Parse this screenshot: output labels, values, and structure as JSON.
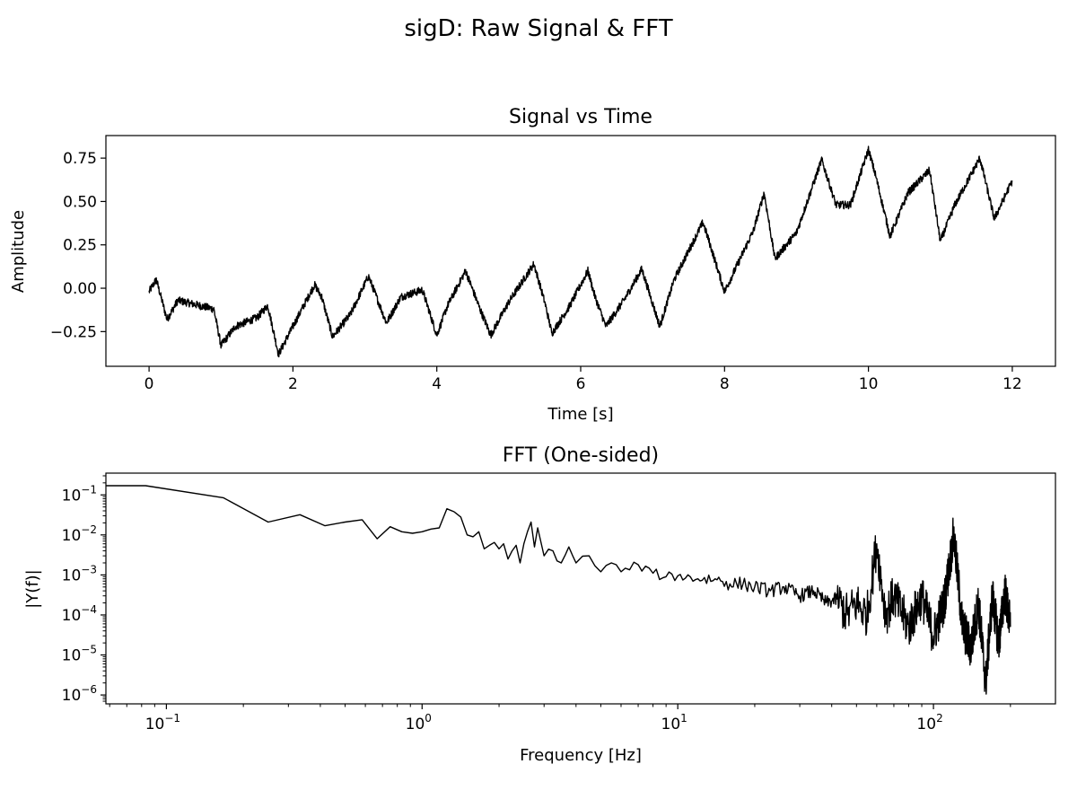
{
  "figure": {
    "title": "sigD: Raw Signal & FFT"
  },
  "chart_data": [
    {
      "type": "line",
      "title": "Signal vs Time",
      "xlabel": "Time [s]",
      "ylabel": "Amplitude",
      "xlim": [
        -0.6,
        12.6
      ],
      "ylim": [
        -0.45,
        0.88
      ],
      "xticks": [
        0,
        2,
        4,
        6,
        8,
        10,
        12
      ],
      "xtick_labels": [
        "0",
        "2",
        "4",
        "6",
        "8",
        "10",
        "12"
      ],
      "yticks": [
        -0.25,
        0.0,
        0.25,
        0.5,
        0.75
      ],
      "ytick_labels": [
        "−0.25",
        "0.00",
        "0.25",
        "0.50",
        "0.75"
      ],
      "grid": false,
      "color": "#000000",
      "series": [
        {
          "x": [
            0.0,
            0.1,
            0.25,
            0.4,
            0.6,
            0.9,
            1.0,
            1.2,
            1.5,
            1.65,
            1.8,
            2.0,
            2.3,
            2.4,
            2.55,
            2.8,
            3.05,
            3.3,
            3.5,
            3.8,
            4.0,
            4.15,
            4.4,
            4.6,
            4.75,
            5.0,
            5.35,
            5.5,
            5.6,
            5.85,
            6.1,
            6.2,
            6.35,
            6.6,
            6.85,
            7.1,
            7.3,
            7.7,
            7.8,
            8.0,
            8.4,
            8.55,
            8.7,
            9.0,
            9.35,
            9.55,
            9.75,
            10.0,
            10.1,
            10.3,
            10.55,
            10.85,
            11.0,
            11.2,
            11.55,
            11.75,
            12.0
          ],
          "y": [
            -0.02,
            0.05,
            -0.18,
            -0.07,
            -0.09,
            -0.12,
            -0.33,
            -0.22,
            -0.17,
            -0.1,
            -0.38,
            -0.22,
            0.02,
            -0.05,
            -0.28,
            -0.15,
            0.07,
            -0.2,
            -0.05,
            -0.01,
            -0.27,
            -0.1,
            0.1,
            -0.12,
            -0.27,
            -0.08,
            0.14,
            -0.08,
            -0.26,
            -0.1,
            0.1,
            -0.05,
            -0.22,
            -0.07,
            0.11,
            -0.22,
            0.05,
            0.38,
            0.25,
            -0.02,
            0.33,
            0.55,
            0.17,
            0.32,
            0.74,
            0.48,
            0.48,
            0.8,
            0.65,
            0.3,
            0.55,
            0.68,
            0.27,
            0.48,
            0.75,
            0.4,
            0.62
          ]
        }
      ]
    },
    {
      "type": "line",
      "title": "FFT (One-sided)",
      "xlabel": "Frequency [Hz]",
      "ylabel": "|Y(f)|",
      "xscale": "log",
      "yscale": "log",
      "xlim": [
        0.058,
        300
      ],
      "ylim": [
        6e-07,
        0.35
      ],
      "xticks": [
        0.1,
        1,
        10,
        100
      ],
      "xtick_labels": [
        "10",
        "10",
        "10",
        "10"
      ],
      "xtick_exponents": [
        "−1",
        "0",
        "1",
        "2"
      ],
      "yticks": [
        1e-06,
        1e-05,
        0.0001,
        0.001,
        0.01,
        0.1
      ],
      "ytick_labels": [
        "10",
        "10",
        "10",
        "10",
        "10",
        "10"
      ],
      "ytick_exponents": [
        "−6",
        "−5",
        "−4",
        "−3",
        "−2",
        "−1"
      ],
      "grid": false,
      "color": "#000000",
      "series": [
        {
          "x": [
            0.05,
            0.083,
            0.167,
            0.25,
            0.333,
            0.417,
            0.5,
            0.583,
            0.667,
            0.75,
            0.833,
            0.917,
            1.0,
            1.083,
            1.167,
            1.25,
            1.333,
            1.417,
            1.5,
            1.583,
            1.667,
            1.75,
            1.833,
            1.917,
            2.0,
            2.083,
            2.167,
            2.25,
            2.333,
            2.417,
            2.5,
            2.583,
            2.667,
            2.75,
            2.833,
            3.0,
            3.25,
            3.5,
            3.75,
            4.0,
            4.5,
            5.0,
            5.5,
            6.0,
            7.0,
            8.0,
            9.0,
            10.0,
            12.0,
            14.0,
            16.0,
            18.0,
            20.0,
            23.0,
            26.0,
            30.0,
            34.0,
            38.0,
            42.0,
            46.0,
            50.0,
            55.0,
            60.0,
            65.0,
            70.0,
            80.0,
            90.0,
            100.0,
            110.0,
            120.0,
            130.0,
            140.0,
            150.0,
            160.0,
            170.0,
            180.0,
            190.0,
            200.0
          ],
          "y": [
            0.17,
            0.17,
            0.085,
            0.021,
            0.032,
            0.017,
            0.021,
            0.024,
            0.008,
            0.016,
            0.012,
            0.011,
            0.012,
            0.014,
            0.015,
            0.045,
            0.038,
            0.028,
            0.01,
            0.009,
            0.012,
            0.0045,
            0.0055,
            0.0065,
            0.0045,
            0.006,
            0.0025,
            0.004,
            0.0055,
            0.002,
            0.006,
            0.012,
            0.021,
            0.005,
            0.015,
            0.003,
            0.004,
            0.002,
            0.005,
            0.002,
            0.003,
            0.0012,
            0.002,
            0.0012,
            0.0018,
            0.0011,
            0.0009,
            0.00095,
            0.0008,
            0.0008,
            0.0006,
            0.0006,
            0.0005,
            0.0004,
            0.0005,
            0.0003,
            0.0004,
            0.0002,
            0.00025,
            0.0001,
            0.0002,
            0.0001,
            0.006,
            0.0001,
            0.0003,
            5e-05,
            0.0003,
            3e-05,
            0.0002,
            0.01,
            5e-05,
            1.5e-05,
            0.0002,
            2e-06,
            0.0003,
            2e-05,
            0.0004,
            5e-05
          ]
        }
      ]
    }
  ]
}
